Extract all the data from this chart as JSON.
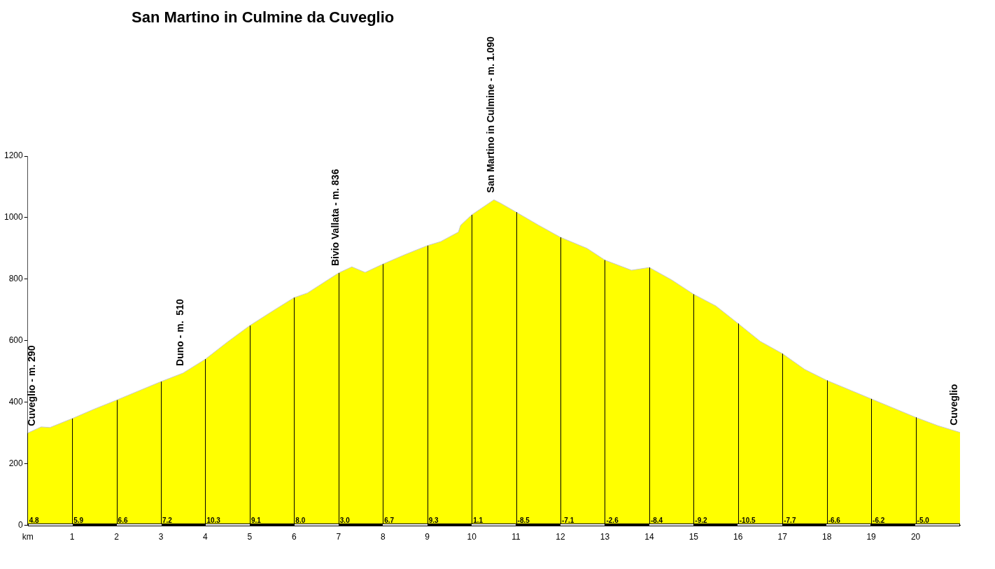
{
  "chart_data": {
    "type": "area",
    "title": "San Martino in Culmine da Cuveglio",
    "x": [
      0,
      0.3,
      0.5,
      1,
      1.5,
      2,
      2.5,
      3,
      3.5,
      4,
      4.5,
      5,
      5.5,
      6,
      6.3,
      7,
      7.3,
      7.6,
      8,
      8.5,
      9,
      9.3,
      9.7,
      9.75,
      10,
      10.5,
      10.65,
      11,
      11.5,
      12,
      12.6,
      13,
      13.6,
      14,
      14.5,
      15,
      15.5,
      16,
      16.5,
      17,
      17.5,
      18,
      19,
      20,
      20.5,
      21
    ],
    "series": [
      {
        "color": "#ffff00",
        "values": [
          300,
          320,
          318,
          347,
          378,
          407,
          437,
          467,
          495,
          540,
          596,
          649,
          695,
          740,
          755,
          820,
          840,
          822,
          849,
          880,
          909,
          922,
          953,
          975,
          1009,
          1058,
          1047,
          1018,
          976,
          936,
          900,
          862,
          829,
          838,
          798,
          751,
          713,
          656,
          598,
          558,
          507,
          471,
          411,
          351,
          324,
          302
        ]
      }
    ],
    "xlim": [
      0,
      21
    ],
    "xticks": [
      {
        "value": 0,
        "label": "km"
      },
      1,
      2,
      3,
      4,
      5,
      6,
      7,
      8,
      9,
      10,
      11,
      12,
      13,
      14,
      15,
      16,
      17,
      18,
      19,
      20
    ],
    "ylim": [
      0,
      1200
    ],
    "yticks": [
      0,
      200,
      400,
      600,
      800,
      1000,
      1200
    ],
    "grid": "x",
    "legend": false,
    "annotations": [
      {
        "text": "Cuveglio - m. 290",
        "x": 0,
        "y": 300
      },
      {
        "text": "Duno - m.  510",
        "x": 3.5,
        "y": 495
      },
      {
        "text": "Bivio Vallata - m. 836",
        "x": 7,
        "y": 820
      },
      {
        "text": "San Martino in Culmine - m. 1.090",
        "x": 10.5,
        "y": 1058
      },
      {
        "text": "Cuveglio",
        "x": 21,
        "y": 302
      },
      {
        "text": "4.8",
        "x": 0,
        "y": 0
      },
      {
        "text": "5.9",
        "x": 1,
        "y": 0
      },
      {
        "text": "6.6",
        "x": 2,
        "y": 0
      },
      {
        "text": "7.2",
        "x": 3,
        "y": 0
      },
      {
        "text": "10.3",
        "x": 4,
        "y": 0
      },
      {
        "text": "9.1",
        "x": 5,
        "y": 0
      },
      {
        "text": "8.0",
        "x": 6,
        "y": 0
      },
      {
        "text": "3.0",
        "x": 7,
        "y": 0
      },
      {
        "text": "6.7",
        "x": 8,
        "y": 0
      },
      {
        "text": "9.3",
        "x": 9,
        "y": 0
      },
      {
        "text": "1.1",
        "x": 10,
        "y": 0
      },
      {
        "text": "-8.5",
        "x": 11,
        "y": 0
      },
      {
        "text": "-7.1",
        "x": 12,
        "y": 0
      },
      {
        "text": "-2.6",
        "x": 13,
        "y": 0
      },
      {
        "text": "-8.4",
        "x": 14,
        "y": 0
      },
      {
        "text": "-9.2",
        "x": 15,
        "y": 0
      },
      {
        "text": "-10.5",
        "x": 16,
        "y": 0
      },
      {
        "text": "-7.7",
        "x": 17,
        "y": 0
      },
      {
        "text": "-6.6",
        "x": 18,
        "y": 0
      },
      {
        "text": "-6.2",
        "x": 19,
        "y": 0
      },
      {
        "text": "-5.0",
        "x": 20,
        "y": 0
      }
    ]
  }
}
